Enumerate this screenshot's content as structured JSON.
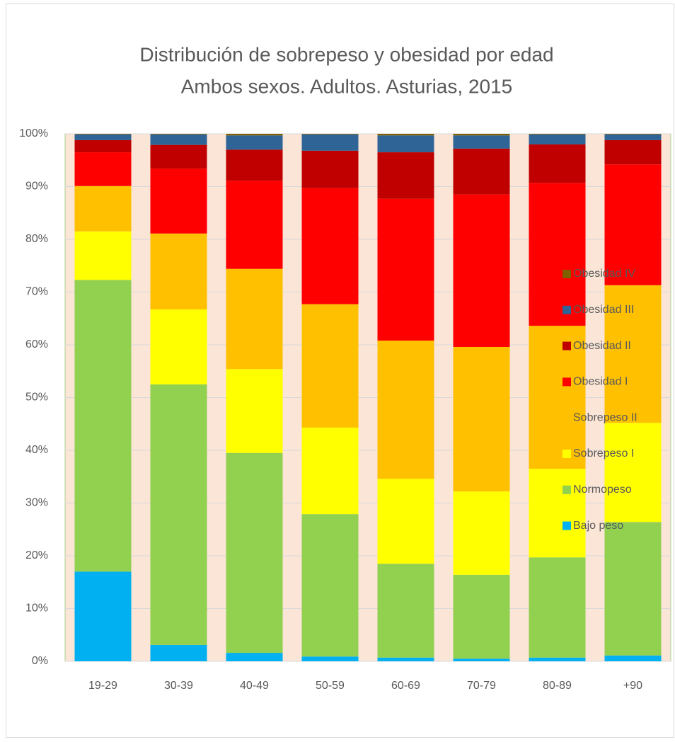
{
  "chart_data": {
    "type": "stacked_bar",
    "title": "Distribución de sobrepeso y obesidad por edad",
    "subtitle": "Ambos sexos. Adultos. Asturias, 2015",
    "categories": [
      "19-29",
      "30-39",
      "40-49",
      "50-59",
      "60-69",
      "70-79",
      "80-89",
      "+90"
    ],
    "series": [
      {
        "name": "Bajo peso",
        "color": "#00b0f0",
        "values": [
          17.0,
          3.1,
          1.6,
          0.9,
          0.7,
          0.5,
          0.7,
          1.1
        ]
      },
      {
        "name": "Normopeso",
        "color": "#92d050",
        "values": [
          55.3,
          49.4,
          37.9,
          27.0,
          17.8,
          15.9,
          19.0,
          25.3
        ]
      },
      {
        "name": "Sobrepeso I",
        "color": "#ffff00",
        "values": [
          9.2,
          14.2,
          15.9,
          16.4,
          16.1,
          15.8,
          16.8,
          18.8
        ]
      },
      {
        "name": "Sobrepeso II",
        "color": "#ffc000",
        "values": [
          8.6,
          14.4,
          19.0,
          23.4,
          26.2,
          27.4,
          27.1,
          26.1
        ]
      },
      {
        "name": "Obesidad I",
        "color": "#ff0000",
        "values": [
          6.4,
          12.3,
          16.7,
          22.0,
          26.9,
          28.9,
          27.1,
          22.9
        ]
      },
      {
        "name": "Obesidad II",
        "color": "#c00000",
        "values": [
          2.3,
          4.5,
          5.9,
          7.1,
          8.8,
          8.7,
          7.3,
          4.6
        ]
      },
      {
        "name": "Obesidad III",
        "color": "#2e6496",
        "values": [
          1.1,
          2.0,
          2.7,
          3.1,
          3.2,
          2.5,
          1.9,
          1.1
        ]
      },
      {
        "name": "Obesidad IV",
        "color": "#7f6000",
        "values": [
          0.1,
          0.1,
          0.3,
          0.1,
          0.3,
          0.3,
          0.1,
          0.1
        ]
      }
    ],
    "ylim": [
      0,
      100
    ],
    "yticks": [
      {
        "value": 0,
        "label": "0%"
      },
      {
        "value": 10,
        "label": "10%"
      },
      {
        "value": 20,
        "label": "20%"
      },
      {
        "value": 30,
        "label": "30%"
      },
      {
        "value": 40,
        "label": "40%"
      },
      {
        "value": 50,
        "label": "50%"
      },
      {
        "value": 60,
        "label": "60%"
      },
      {
        "value": 70,
        "label": "70%"
      },
      {
        "value": 80,
        "label": "80%"
      },
      {
        "value": 90,
        "label": "90%"
      },
      {
        "value": 100,
        "label": "100%"
      }
    ],
    "grid": true,
    "legend": "right"
  }
}
